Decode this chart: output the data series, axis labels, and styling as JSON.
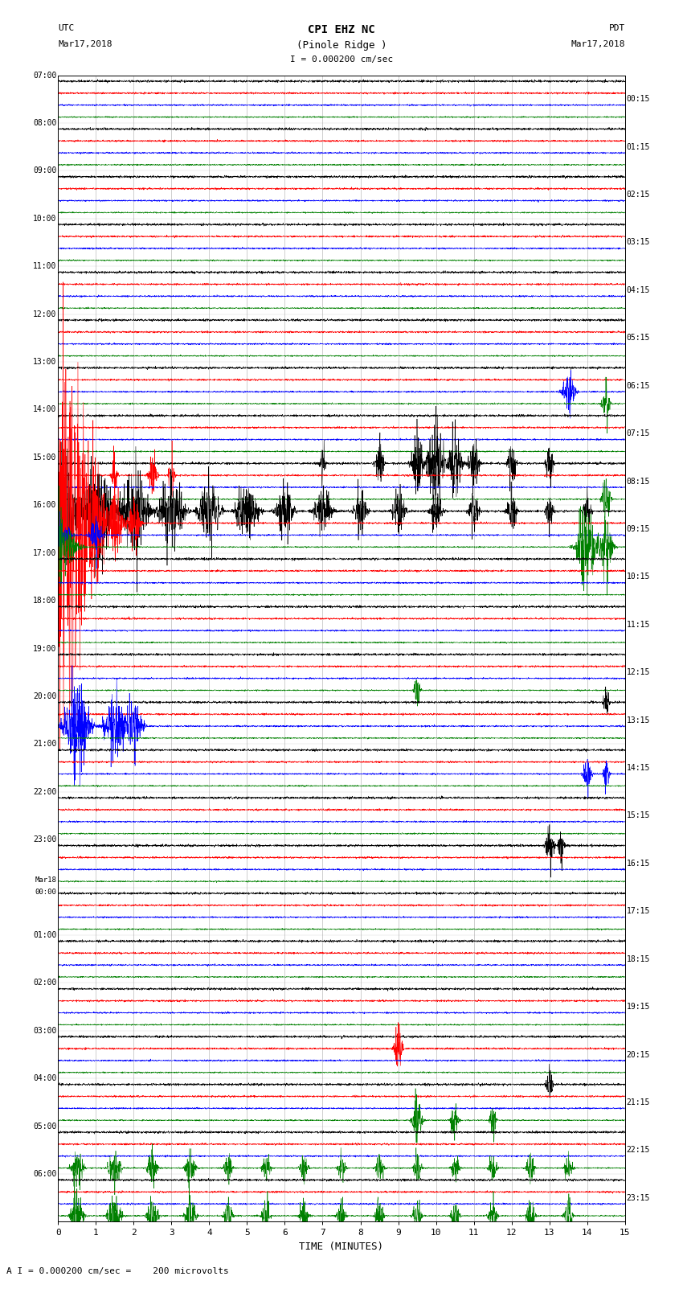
{
  "title_line1": "CPI EHZ NC",
  "title_line2": "(Pinole Ridge )",
  "scale_label": "I = 0.000200 cm/sec",
  "footer_label": "A I = 0.000200 cm/sec =    200 microvolts",
  "utc_label": "UTC",
  "utc_date": "Mar17,2018",
  "pdt_label": "PDT",
  "pdt_date": "Mar17,2018",
  "xlabel": "TIME (MINUTES)",
  "bg_color": "#ffffff",
  "line_colors": [
    "black",
    "red",
    "blue",
    "green"
  ],
  "left_times": [
    "07:00",
    "08:00",
    "09:00",
    "10:00",
    "11:00",
    "12:00",
    "13:00",
    "14:00",
    "15:00",
    "16:00",
    "17:00",
    "18:00",
    "19:00",
    "20:00",
    "21:00",
    "22:00",
    "23:00",
    "Mar18\n00:00",
    "01:00",
    "02:00",
    "03:00",
    "04:00",
    "05:00",
    "06:00"
  ],
  "right_times": [
    "00:15",
    "01:15",
    "02:15",
    "03:15",
    "04:15",
    "05:15",
    "06:15",
    "07:15",
    "08:15",
    "09:15",
    "10:15",
    "11:15",
    "12:15",
    "13:15",
    "14:15",
    "15:15",
    "16:15",
    "17:15",
    "18:15",
    "19:15",
    "20:15",
    "21:15",
    "22:15",
    "23:15"
  ],
  "n_rows": 24,
  "n_traces_per_row": 4,
  "minutes": 15,
  "seed": 42
}
